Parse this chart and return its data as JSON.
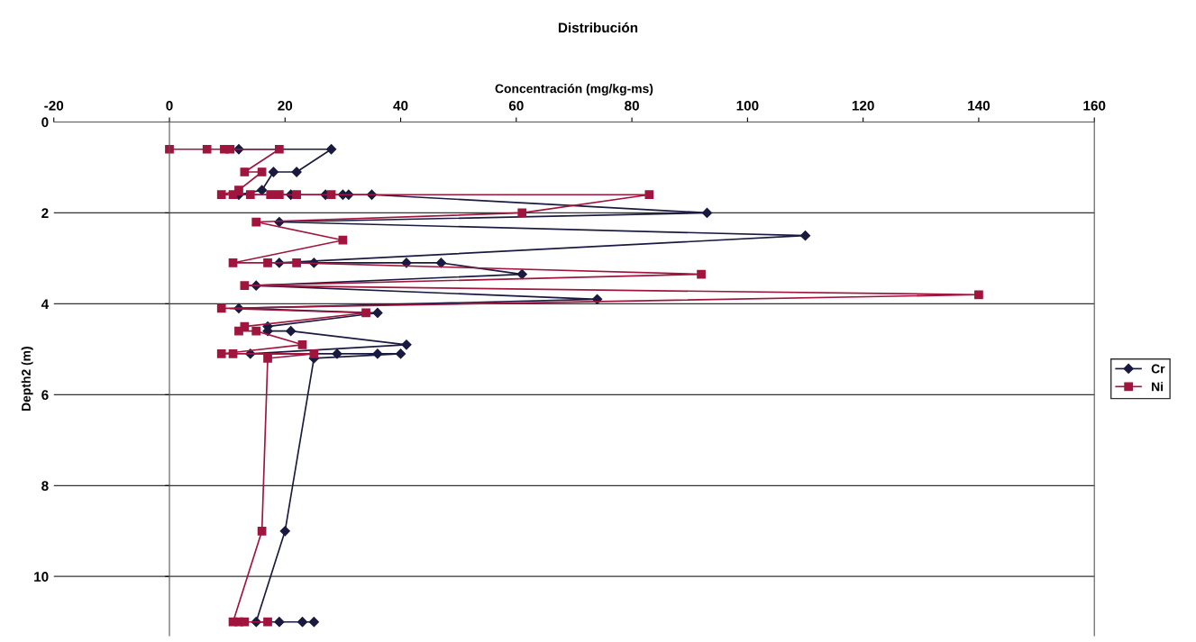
{
  "chart_data": {
    "type": "line",
    "title": "Distribución",
    "xlabel": "Concentración (mg/kg-ms)",
    "ylabel": "Depth2 (m)",
    "xlim": [
      -20,
      160
    ],
    "xticks": [
      -20,
      0,
      20,
      40,
      60,
      80,
      100,
      120,
      140,
      160
    ],
    "ylim": [
      11.3,
      0
    ],
    "yticks": [
      0,
      2,
      4,
      6,
      8,
      10
    ],
    "grid": "y",
    "legend": "right",
    "series": [
      {
        "name": "Cr",
        "color": "#1a1a40",
        "marker": "diamond",
        "x": [
          12,
          28,
          22,
          18,
          16,
          12,
          21,
          27,
          30,
          31,
          35,
          93,
          19,
          110,
          19,
          25,
          41,
          47,
          61,
          15,
          74,
          12,
          36,
          17,
          17,
          21,
          41,
          14,
          29,
          36,
          40,
          25,
          20,
          15,
          19,
          23,
          25
        ],
        "values": [
          0.6,
          0.6,
          1.1,
          1.1,
          1.5,
          1.6,
          1.6,
          1.6,
          1.6,
          1.6,
          1.6,
          2.0,
          2.2,
          2.5,
          3.1,
          3.1,
          3.1,
          3.1,
          3.35,
          3.6,
          3.9,
          4.1,
          4.2,
          4.5,
          4.6,
          4.6,
          4.9,
          5.1,
          5.1,
          5.1,
          5.1,
          5.2,
          9.0,
          11.0,
          11.0,
          11.0,
          11.0
        ]
      },
      {
        "name": "Ni",
        "color": "#a0153e",
        "marker": "square",
        "x": [
          0,
          6.5,
          9.5,
          10.5,
          19,
          13,
          16,
          12,
          9,
          11,
          14,
          17.5,
          19,
          22,
          28,
          83,
          61,
          15,
          30,
          11,
          17,
          22,
          92,
          13,
          140,
          9,
          34,
          13,
          12,
          15,
          23,
          9,
          11,
          25,
          17,
          16,
          11,
          12,
          13,
          17
        ],
        "values": [
          0.6,
          0.6,
          0.6,
          0.6,
          0.6,
          1.1,
          1.1,
          1.5,
          1.6,
          1.6,
          1.6,
          1.6,
          1.6,
          1.6,
          1.6,
          1.6,
          2.0,
          2.2,
          2.6,
          3.1,
          3.1,
          3.1,
          3.35,
          3.6,
          3.8,
          4.1,
          4.2,
          4.5,
          4.6,
          4.6,
          4.9,
          5.1,
          5.1,
          5.1,
          5.2,
          9.0,
          11.0,
          11.0,
          11.0,
          11.0
        ]
      }
    ]
  }
}
